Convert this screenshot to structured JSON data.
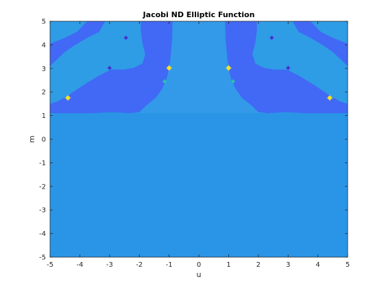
{
  "chart_data": {
    "type": "heatmap",
    "title": "Jacobi ND Elliptic Function",
    "xlabel": "u",
    "ylabel": "m",
    "xlim": [
      -5,
      5
    ],
    "ylim": [
      -5,
      5
    ],
    "x_ticks": [
      "-5",
      "-4",
      "-3",
      "-2",
      "-1",
      "0",
      "1",
      "2",
      "3",
      "4",
      "5"
    ],
    "y_ticks": [
      "-5",
      "-4",
      "-3",
      "-2",
      "-1",
      "0",
      "1",
      "2",
      "3",
      "4",
      "5"
    ],
    "x_tick_values": [
      -5,
      -4,
      -3,
      -2,
      -1,
      0,
      1,
      2,
      3,
      4,
      5
    ],
    "y_tick_values": [
      -5,
      -4,
      -3,
      -2,
      -1,
      0,
      1,
      2,
      3,
      4,
      5
    ],
    "grid": false,
    "colors": {
      "base": "#2a95e6",
      "middle": "#3399e9",
      "dark_band": "#4169f5",
      "light_band": "#2f9ce6",
      "peak_yellow": "#f3e324",
      "peak_cyan": "#2bc5a6",
      "peak_purple": "#4b2bd1"
    },
    "markers": [
      {
        "u": -4.4,
        "m": 1.75,
        "kind": "peak_yellow"
      },
      {
        "u": 4.4,
        "m": 1.75,
        "kind": "peak_yellow"
      },
      {
        "u": -1.0,
        "m": 3.02,
        "kind": "peak_yellow"
      },
      {
        "u": 1.0,
        "m": 3.02,
        "kind": "peak_yellow"
      },
      {
        "u": -1.15,
        "m": 2.45,
        "kind": "peak_cyan"
      },
      {
        "u": 1.15,
        "m": 2.45,
        "kind": "peak_cyan"
      },
      {
        "u": -2.45,
        "m": 4.3,
        "kind": "peak_purple"
      },
      {
        "u": 2.45,
        "m": 4.3,
        "kind": "peak_purple"
      },
      {
        "u": -3.0,
        "m": 3.02,
        "kind": "peak_purple"
      },
      {
        "u": 3.0,
        "m": 3.02,
        "kind": "peak_purple"
      }
    ]
  }
}
